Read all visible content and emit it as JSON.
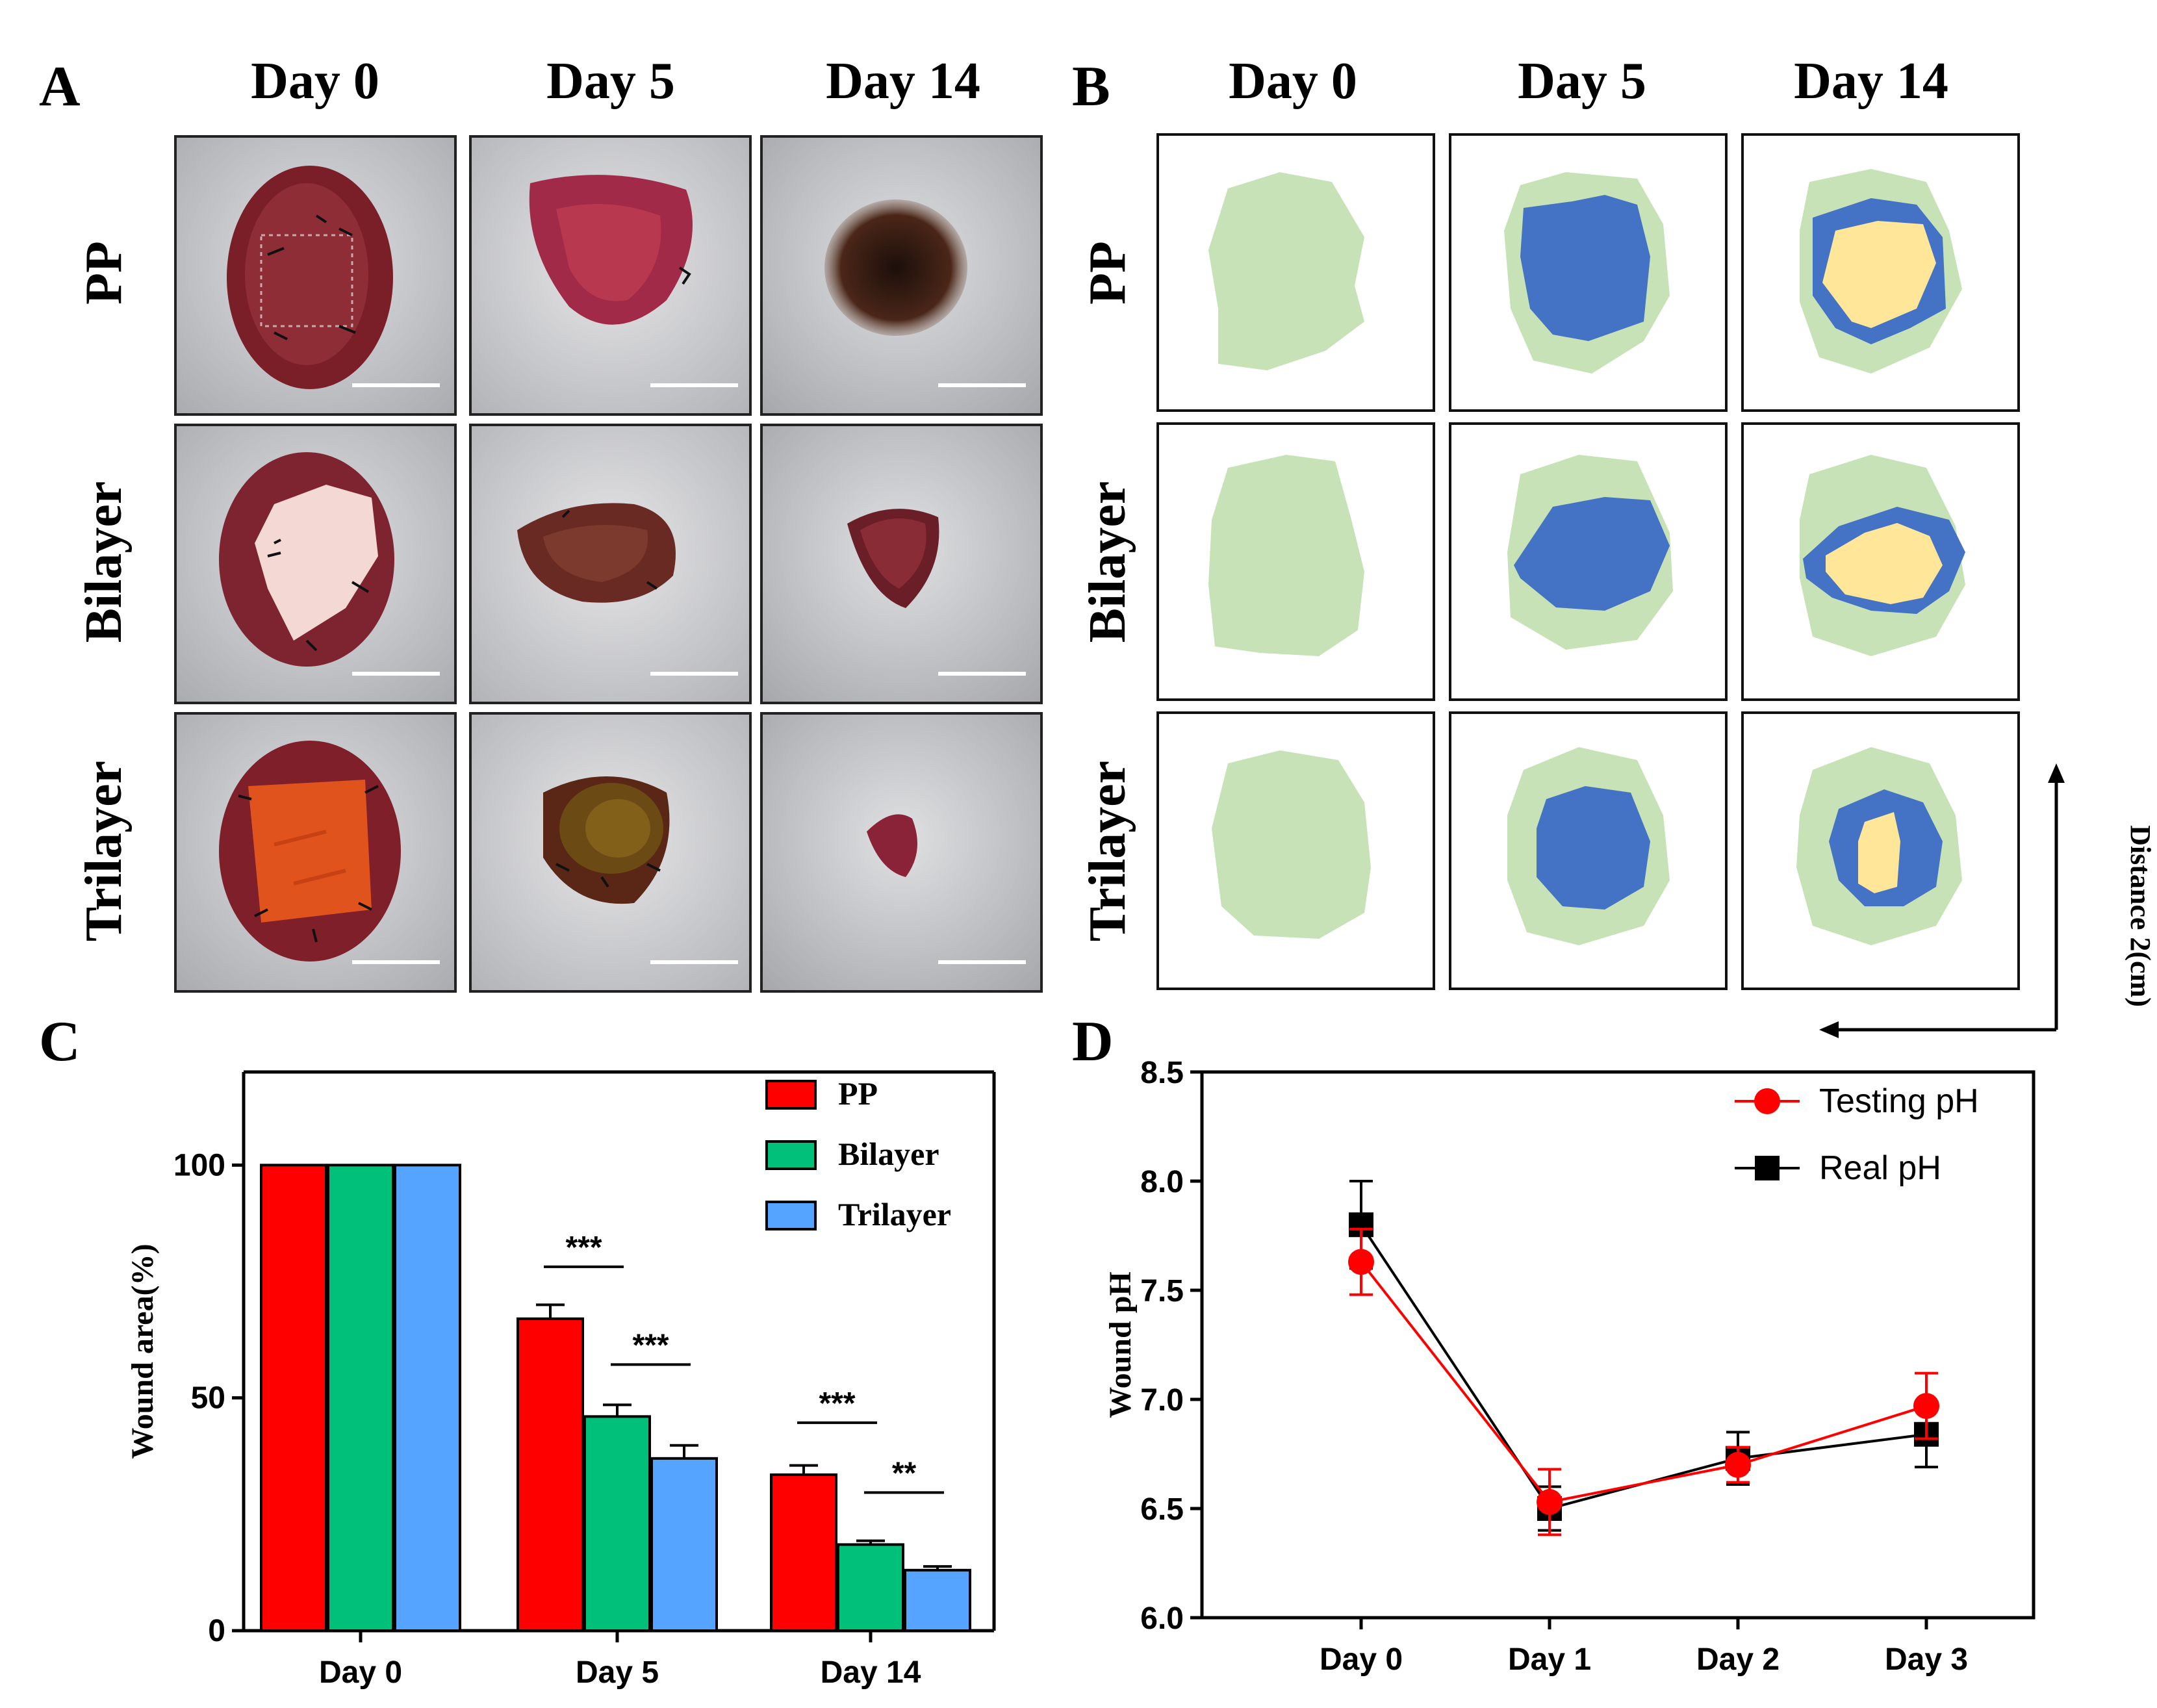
{
  "panels": {
    "A": "A",
    "B": "B",
    "C": "C",
    "D": "D"
  },
  "columns": [
    "Day 0",
    "Day 5",
    "Day 14"
  ],
  "rows": [
    "PP",
    "Bilayer",
    "Trilayer"
  ],
  "schematic": {
    "distance_label": "Distance 2(cm)",
    "colors": {
      "outer": "#c6e2b6",
      "middle": "#4472c4",
      "inner": "#ffe699"
    }
  },
  "photo_colors": {
    "fur": "#cfd0d3",
    "wound": "#8a2a33",
    "bilayer_dressing": "#f3d6cf",
    "trilayer_dressing": "#e0511c",
    "scab": "#3a1f14",
    "scalebar": "#ffffff"
  },
  "chart_data": [
    {
      "type": "bar",
      "title": "",
      "xlabel": "",
      "ylabel": "Wound area(%)",
      "ylim": [
        0,
        120
      ],
      "yticks": [
        "0",
        "50",
        "100"
      ],
      "categories": [
        "Day 0",
        "Day 5",
        "Day 14"
      ],
      "series": [
        {
          "name": "PP",
          "color": "#ff0000",
          "values": [
            100,
            67,
            33.5
          ],
          "errors": [
            0,
            3,
            2
          ]
        },
        {
          "name": "Bilayer",
          "color": "#00c07a",
          "values": [
            100,
            46,
            18.5
          ],
          "errors": [
            0,
            2.5,
            0.8
          ]
        },
        {
          "name": "Trilayer",
          "color": "#55a4ff",
          "values": [
            100,
            37,
            13
          ],
          "errors": [
            0,
            2.8,
            0.8
          ]
        }
      ],
      "significance": [
        {
          "label": "***",
          "category": "Day 5",
          "from": "PP",
          "to": "Bilayer"
        },
        {
          "label": "***",
          "category": "Day 5",
          "from": "Bilayer",
          "to": "Trilayer"
        },
        {
          "label": "***",
          "category": "Day 14",
          "from": "PP",
          "to": "Bilayer"
        },
        {
          "label": "**",
          "category": "Day 14",
          "from": "Bilayer",
          "to": "Trilayer"
        }
      ],
      "legend_position": "top-right"
    },
    {
      "type": "line",
      "title": "",
      "xlabel": "",
      "ylabel": "Wound pH",
      "ylim": [
        6.0,
        8.5
      ],
      "yticks": [
        "6.0",
        "6.5",
        "7.0",
        "7.5",
        "8.0",
        "8.5"
      ],
      "categories": [
        "Day 0",
        "Day 1",
        "Day 2",
        "Day 3"
      ],
      "series": [
        {
          "name": "Testing pH",
          "color": "#ff0000",
          "marker": "circle",
          "values": [
            7.63,
            6.53,
            6.7,
            6.97
          ],
          "errors": [
            0.15,
            0.15,
            0.08,
            0.15
          ]
        },
        {
          "name": "Real pH",
          "color": "#000000",
          "marker": "square",
          "values": [
            7.8,
            6.5,
            6.73,
            6.84
          ],
          "errors": [
            0.2,
            0.1,
            0.12,
            0.15
          ]
        }
      ],
      "legend_position": "top-right"
    }
  ]
}
